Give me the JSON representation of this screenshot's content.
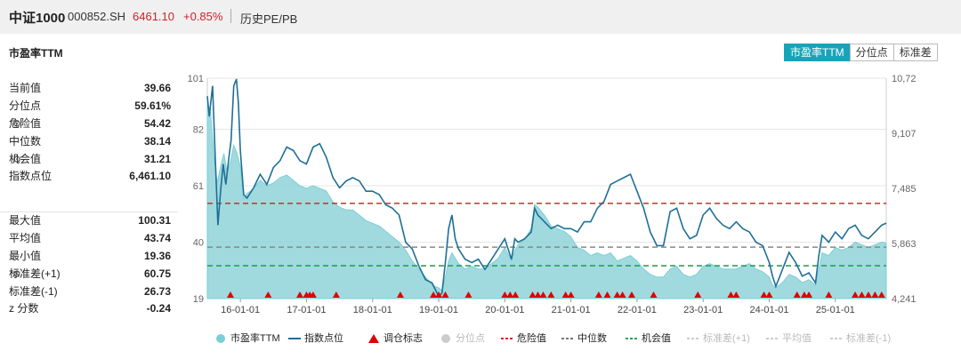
{
  "header": {
    "name": "中证1000",
    "code": "000852.SH",
    "price": "6461.10",
    "change": "+0.85%",
    "tab": "历史PE/PB"
  },
  "panel": {
    "metric_title": "市盈率TTM",
    "buttons": [
      "市盈率TTM",
      "分位点",
      "标准差"
    ],
    "active_button": 0
  },
  "stats_top": [
    {
      "label": "当前值",
      "value": "39.66",
      "gear": false
    },
    {
      "label": "分位点",
      "value": "59.61%",
      "gear": false
    },
    {
      "label": "危险值",
      "value": "54.42",
      "gear": true
    },
    {
      "label": "中位数",
      "value": "38.14",
      "gear": false
    },
    {
      "label": "机会值",
      "value": "31.21",
      "gear": true
    },
    {
      "label": "指数点位",
      "value": "6,461.10",
      "gear": false
    }
  ],
  "stats_bottom": [
    {
      "label": "最大值",
      "value": "100.31",
      "gear": false
    },
    {
      "label": "平均值",
      "value": "43.74",
      "gear": false
    },
    {
      "label": "最小值",
      "value": "19.36",
      "gear": false
    },
    {
      "label": "标准差(+1)",
      "value": "60.75",
      "gear": true
    },
    {
      "label": "标准差(-1)",
      "value": "26.73",
      "gear": false
    },
    {
      "label": "z 分数",
      "value": "-0.24",
      "gear": false
    }
  ],
  "legend": [
    {
      "label": "市盈率TTM",
      "kind": "dot",
      "color": "#7ccfd6",
      "active": true
    },
    {
      "label": "指数点位",
      "kind": "line",
      "color": "#1f6f96",
      "active": true
    },
    {
      "label": "调仓标志",
      "kind": "triangle",
      "color": "#e00000",
      "active": true
    },
    {
      "label": "分位点",
      "kind": "dot",
      "color": "#cccccc",
      "active": false
    },
    {
      "label": "危险值",
      "kind": "dash",
      "color": "#d62728",
      "active": true
    },
    {
      "label": "中位数",
      "kind": "dash",
      "color": "#777777",
      "active": true
    },
    {
      "label": "机会值",
      "kind": "dash",
      "color": "#2ca05a",
      "active": true
    },
    {
      "label": "标准差(+1)",
      "kind": "dash",
      "color": "#cccccc",
      "active": false
    },
    {
      "label": "平均值",
      "kind": "dash",
      "color": "#cccccc",
      "active": false
    },
    {
      "label": "标准差(-1)",
      "kind": "dash",
      "color": "#cccccc",
      "active": false
    }
  ],
  "chart_data": {
    "type": "area",
    "x_ticks": [
      "16-01-01",
      "17-01-01",
      "18-01-01",
      "19-01-01",
      "20-01-01",
      "21-01-01",
      "22-01-01",
      "23-01-01",
      "24-01-01",
      "25-01-01"
    ],
    "y_left_ticks": [
      "101",
      "82",
      "61",
      "40",
      "19"
    ],
    "y_right_ticks": [
      "10,727",
      "9,107",
      "7,485",
      "5,863",
      "4,241"
    ],
    "y_left_range": [
      19,
      101
    ],
    "y_right_range": [
      4241,
      10727
    ],
    "x_range": [
      2015.5,
      2025.77
    ],
    "ref_lines": {
      "danger": 54.42,
      "median": 38.14,
      "opportunity": 31.21
    },
    "pe_series": [
      [
        2015.5,
        92
      ],
      [
        2015.55,
        88
      ],
      [
        2015.6,
        72
      ],
      [
        2015.65,
        62
      ],
      [
        2015.7,
        68
      ],
      [
        2015.75,
        73
      ],
      [
        2015.8,
        66
      ],
      [
        2015.85,
        70
      ],
      [
        2015.9,
        76
      ],
      [
        2015.95,
        73
      ],
      [
        2016.0,
        68
      ],
      [
        2016.05,
        56
      ],
      [
        2016.1,
        58
      ],
      [
        2016.2,
        60
      ],
      [
        2016.3,
        63
      ],
      [
        2016.4,
        61
      ],
      [
        2016.5,
        62
      ],
      [
        2016.6,
        64
      ],
      [
        2016.7,
        65
      ],
      [
        2016.8,
        63
      ],
      [
        2016.9,
        61
      ],
      [
        2017.0,
        60
      ],
      [
        2017.1,
        61
      ],
      [
        2017.2,
        60
      ],
      [
        2017.3,
        59
      ],
      [
        2017.4,
        55
      ],
      [
        2017.5,
        53
      ],
      [
        2017.6,
        52
      ],
      [
        2017.7,
        52
      ],
      [
        2017.8,
        50
      ],
      [
        2017.9,
        48
      ],
      [
        2018.0,
        47
      ],
      [
        2018.1,
        46
      ],
      [
        2018.2,
        44
      ],
      [
        2018.3,
        42
      ],
      [
        2018.4,
        40
      ],
      [
        2018.5,
        37
      ],
      [
        2018.6,
        33
      ],
      [
        2018.7,
        30
      ],
      [
        2018.8,
        27
      ],
      [
        2018.9,
        24
      ],
      [
        2019.0,
        23
      ],
      [
        2019.05,
        22
      ],
      [
        2019.1,
        27
      ],
      [
        2019.15,
        33
      ],
      [
        2019.2,
        36
      ],
      [
        2019.25,
        34
      ],
      [
        2019.3,
        32
      ],
      [
        2019.4,
        30
      ],
      [
        2019.5,
        31
      ],
      [
        2019.6,
        30
      ],
      [
        2019.7,
        30
      ],
      [
        2019.8,
        32
      ],
      [
        2019.9,
        34
      ],
      [
        2020.0,
        38
      ],
      [
        2020.1,
        33
      ],
      [
        2020.15,
        37
      ],
      [
        2020.2,
        39
      ],
      [
        2020.3,
        41
      ],
      [
        2020.4,
        45
      ],
      [
        2020.45,
        54
      ],
      [
        2020.5,
        53
      ],
      [
        2020.6,
        50
      ],
      [
        2020.7,
        46
      ],
      [
        2020.8,
        45
      ],
      [
        2020.9,
        44
      ],
      [
        2021.0,
        42
      ],
      [
        2021.1,
        38
      ],
      [
        2021.2,
        37
      ],
      [
        2021.3,
        35
      ],
      [
        2021.4,
        36
      ],
      [
        2021.5,
        35
      ],
      [
        2021.6,
        36
      ],
      [
        2021.7,
        33
      ],
      [
        2021.8,
        34
      ],
      [
        2021.9,
        35
      ],
      [
        2022.0,
        33
      ],
      [
        2022.1,
        30
      ],
      [
        2022.2,
        28
      ],
      [
        2022.3,
        27
      ],
      [
        2022.4,
        27
      ],
      [
        2022.5,
        30
      ],
      [
        2022.6,
        31
      ],
      [
        2022.7,
        28
      ],
      [
        2022.8,
        27
      ],
      [
        2022.9,
        28
      ],
      [
        2023.0,
        31
      ],
      [
        2023.1,
        32
      ],
      [
        2023.2,
        31
      ],
      [
        2023.3,
        30
      ],
      [
        2023.4,
        30
      ],
      [
        2023.5,
        30
      ],
      [
        2023.6,
        31
      ],
      [
        2023.7,
        32
      ],
      [
        2023.8,
        30
      ],
      [
        2023.9,
        29
      ],
      [
        2024.0,
        27
      ],
      [
        2024.05,
        24
      ],
      [
        2024.1,
        23
      ],
      [
        2024.2,
        25
      ],
      [
        2024.3,
        28
      ],
      [
        2024.4,
        27
      ],
      [
        2024.5,
        25
      ],
      [
        2024.6,
        26
      ],
      [
        2024.7,
        24
      ],
      [
        2024.75,
        30
      ],
      [
        2024.8,
        36
      ],
      [
        2024.9,
        35
      ],
      [
        2025.0,
        38
      ],
      [
        2025.1,
        37
      ],
      [
        2025.2,
        38
      ],
      [
        2025.3,
        40
      ],
      [
        2025.4,
        39
      ],
      [
        2025.5,
        38
      ],
      [
        2025.6,
        39
      ],
      [
        2025.7,
        40
      ],
      [
        2025.77,
        39.66
      ]
    ],
    "index_series": [
      [
        2015.5,
        10200
      ],
      [
        2015.53,
        9600
      ],
      [
        2015.58,
        10500
      ],
      [
        2015.62,
        8400
      ],
      [
        2015.66,
        6400
      ],
      [
        2015.7,
        7400
      ],
      [
        2015.74,
        8200
      ],
      [
        2015.78,
        7600
      ],
      [
        2015.82,
        8300
      ],
      [
        2015.86,
        8900
      ],
      [
        2015.9,
        10500
      ],
      [
        2015.94,
        10700
      ],
      [
        2015.97,
        10000
      ],
      [
        2016.0,
        8600
      ],
      [
        2016.05,
        7300
      ],
      [
        2016.1,
        7200
      ],
      [
        2016.2,
        7500
      ],
      [
        2016.3,
        7900
      ],
      [
        2016.4,
        7600
      ],
      [
        2016.5,
        8100
      ],
      [
        2016.6,
        8300
      ],
      [
        2016.7,
        8700
      ],
      [
        2016.8,
        8600
      ],
      [
        2016.9,
        8300
      ],
      [
        2017.0,
        8200
      ],
      [
        2017.1,
        8700
      ],
      [
        2017.2,
        8800
      ],
      [
        2017.3,
        8400
      ],
      [
        2017.4,
        7800
      ],
      [
        2017.5,
        7500
      ],
      [
        2017.6,
        7700
      ],
      [
        2017.7,
        7800
      ],
      [
        2017.8,
        7700
      ],
      [
        2017.9,
        7400
      ],
      [
        2018.0,
        7400
      ],
      [
        2018.1,
        7300
      ],
      [
        2018.2,
        7000
      ],
      [
        2018.3,
        6900
      ],
      [
        2018.4,
        6700
      ],
      [
        2018.5,
        5900
      ],
      [
        2018.6,
        5700
      ],
      [
        2018.7,
        5200
      ],
      [
        2018.8,
        4800
      ],
      [
        2018.9,
        4700
      ],
      [
        2019.0,
        4300
      ],
      [
        2019.05,
        4400
      ],
      [
        2019.1,
        5300
      ],
      [
        2019.15,
        6300
      ],
      [
        2019.2,
        6700
      ],
      [
        2019.25,
        6000
      ],
      [
        2019.3,
        5700
      ],
      [
        2019.4,
        5400
      ],
      [
        2019.5,
        5300
      ],
      [
        2019.6,
        5400
      ],
      [
        2019.7,
        5100
      ],
      [
        2019.8,
        5400
      ],
      [
        2019.9,
        5700
      ],
      [
        2020.0,
        6000
      ],
      [
        2020.1,
        5400
      ],
      [
        2020.15,
        6000
      ],
      [
        2020.2,
        5900
      ],
      [
        2020.3,
        6000
      ],
      [
        2020.4,
        6200
      ],
      [
        2020.45,
        6900
      ],
      [
        2020.5,
        6700
      ],
      [
        2020.6,
        6500
      ],
      [
        2020.7,
        6300
      ],
      [
        2020.8,
        6400
      ],
      [
        2020.9,
        6300
      ],
      [
        2021.0,
        6300
      ],
      [
        2021.1,
        6200
      ],
      [
        2021.2,
        6500
      ],
      [
        2021.3,
        6500
      ],
      [
        2021.4,
        6900
      ],
      [
        2021.5,
        7100
      ],
      [
        2021.6,
        7600
      ],
      [
        2021.7,
        7700
      ],
      [
        2021.8,
        7800
      ],
      [
        2021.9,
        7900
      ],
      [
        2022.0,
        7400
      ],
      [
        2022.1,
        6900
      ],
      [
        2022.2,
        6200
      ],
      [
        2022.3,
        5800
      ],
      [
        2022.4,
        5800
      ],
      [
        2022.5,
        6800
      ],
      [
        2022.6,
        6900
      ],
      [
        2022.7,
        6300
      ],
      [
        2022.8,
        6000
      ],
      [
        2022.9,
        6100
      ],
      [
        2023.0,
        6700
      ],
      [
        2023.1,
        6900
      ],
      [
        2023.2,
        6600
      ],
      [
        2023.3,
        6400
      ],
      [
        2023.4,
        6300
      ],
      [
        2023.5,
        6500
      ],
      [
        2023.6,
        6300
      ],
      [
        2023.7,
        6200
      ],
      [
        2023.8,
        5900
      ],
      [
        2023.9,
        5800
      ],
      [
        2024.0,
        5300
      ],
      [
        2024.05,
        4900
      ],
      [
        2024.1,
        4600
      ],
      [
        2024.2,
        5100
      ],
      [
        2024.3,
        5600
      ],
      [
        2024.4,
        5300
      ],
      [
        2024.5,
        4900
      ],
      [
        2024.6,
        5000
      ],
      [
        2024.7,
        4700
      ],
      [
        2024.75,
        5500
      ],
      [
        2024.8,
        6100
      ],
      [
        2024.9,
        5900
      ],
      [
        2025.0,
        6200
      ],
      [
        2025.1,
        6000
      ],
      [
        2025.2,
        6300
      ],
      [
        2025.3,
        6400
      ],
      [
        2025.4,
        6100
      ],
      [
        2025.5,
        6000
      ],
      [
        2025.6,
        6200
      ],
      [
        2025.7,
        6400
      ],
      [
        2025.77,
        6461.1
      ]
    ],
    "rebalance_markers": [
      2015.85,
      2016.42,
      2016.9,
      2017.0,
      2017.05,
      2017.1,
      2017.45,
      2018.42,
      2018.92,
      2019.0,
      2019.1,
      2019.45,
      2020.0,
      2020.08,
      2020.16,
      2020.42,
      2020.5,
      2020.58,
      2020.7,
      2020.92,
      2021.0,
      2021.42,
      2021.55,
      2021.7,
      2021.78,
      2021.92,
      2022.25,
      2022.92,
      2023.42,
      2023.5,
      2023.92,
      2024.0,
      2024.42,
      2024.53,
      2024.6,
      2024.9,
      2025.3,
      2025.4,
      2025.5,
      2025.6,
      2025.7
    ]
  }
}
